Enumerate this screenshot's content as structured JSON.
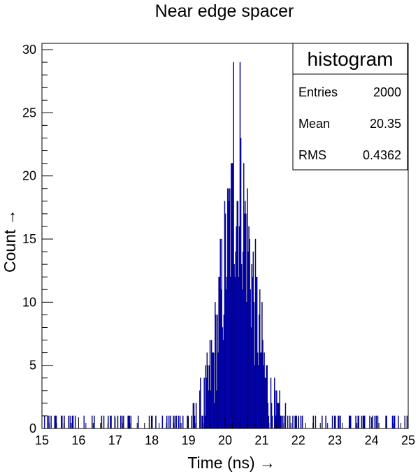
{
  "chart_data": {
    "type": "bar",
    "title": "Near edge spacer",
    "xlabel": "Time (ns) →",
    "ylabel": "Count →",
    "xlim": [
      15,
      25
    ],
    "ylim": [
      0,
      30.5
    ],
    "x_ticks": [
      "15",
      "16",
      "17",
      "18",
      "19",
      "20",
      "21",
      "22",
      "23",
      "24",
      "25"
    ],
    "y_ticks": [
      "0",
      "5",
      "10",
      "15",
      "20",
      "25",
      "30"
    ],
    "bin_width": 0.02,
    "color": "#0000ff",
    "grid": false,
    "legend": "top-right",
    "stats_box": {
      "title": "histogram",
      "rows": [
        {
          "label": "Entries",
          "value": "2000"
        },
        {
          "label": "Mean",
          "value": "20.35"
        },
        {
          "label": "RMS",
          "value": "0.4362"
        }
      ]
    },
    "distribution": {
      "mean": 20.35,
      "rms": 0.4362,
      "entries": 2000,
      "peak": 29
    }
  }
}
